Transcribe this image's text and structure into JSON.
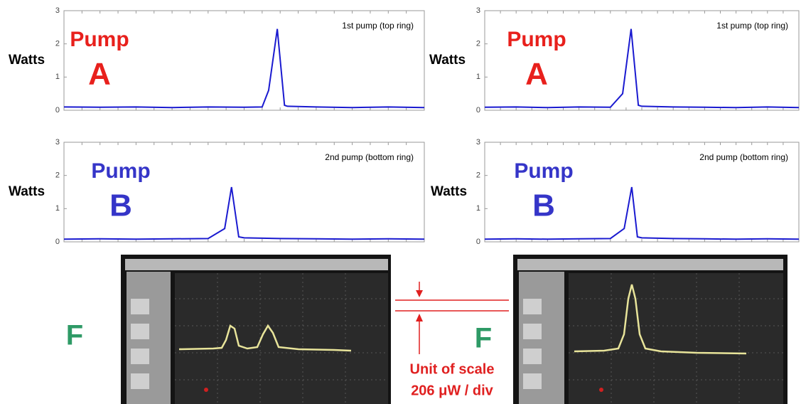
{
  "chart_data": [
    {
      "type": "line",
      "ylabel": "Watts",
      "annotation": "1st pump (top ring)",
      "label_line1": "Pump",
      "label_line2": "A",
      "label_color": "#e8201c",
      "x": [
        0,
        10,
        20,
        30,
        40,
        50,
        55,
        56.8,
        59.2,
        61.2,
        62,
        70,
        80,
        90,
        100
      ],
      "series": [
        {
          "color": "#1a1ad0",
          "values": [
            0.1,
            0.09,
            0.1,
            0.08,
            0.1,
            0.09,
            0.1,
            0.6,
            2.45,
            0.15,
            0.12,
            0.1,
            0.08,
            0.1,
            0.08
          ]
        }
      ],
      "xlim": [
        0,
        100
      ],
      "ylim": [
        0,
        3
      ],
      "yticks": [
        0,
        1,
        2,
        3
      ]
    },
    {
      "type": "line",
      "ylabel": "Watts",
      "annotation": "1st pump (top ring)",
      "label_line1": "Pump",
      "label_line2": "A",
      "label_color": "#e8201c",
      "x": [
        0,
        10,
        20,
        30,
        40,
        43.9,
        46.6,
        48.9,
        50,
        60,
        70,
        80,
        90,
        100
      ],
      "series": [
        {
          "color": "#1a1ad0",
          "values": [
            0.09,
            0.1,
            0.08,
            0.1,
            0.09,
            0.5,
            2.45,
            0.15,
            0.12,
            0.1,
            0.09,
            0.08,
            0.1,
            0.08
          ]
        }
      ],
      "xlim": [
        0,
        100
      ],
      "ylim": [
        0,
        3
      ],
      "yticks": [
        0,
        1,
        2,
        3
      ]
    },
    {
      "type": "line",
      "ylabel": "Watts",
      "annotation": "2nd pump (bottom ring)",
      "label_line1": "Pump",
      "label_line2": "B",
      "label_color": "#3535c8",
      "x": [
        0,
        10,
        20,
        30,
        40,
        44.6,
        46.5,
        48.5,
        50,
        60,
        70,
        80,
        90,
        100
      ],
      "series": [
        {
          "color": "#1a1ad0",
          "values": [
            0.08,
            0.09,
            0.08,
            0.09,
            0.1,
            0.4,
            1.65,
            0.15,
            0.12,
            0.1,
            0.09,
            0.08,
            0.09,
            0.08
          ]
        }
      ],
      "xlim": [
        0,
        100
      ],
      "ylim": [
        0,
        3
      ],
      "yticks": [
        0,
        1,
        2,
        3
      ]
    },
    {
      "type": "line",
      "ylabel": "Watts",
      "annotation": "2nd pump (bottom ring)",
      "label_line1": "Pump",
      "label_line2": "B",
      "label_color": "#3535c8",
      "x": [
        0,
        10,
        20,
        30,
        40,
        44.4,
        46.8,
        48.6,
        50,
        60,
        70,
        80,
        90,
        100
      ],
      "series": [
        {
          "color": "#1a1ad0",
          "values": [
            0.08,
            0.09,
            0.08,
            0.09,
            0.1,
            0.4,
            1.65,
            0.15,
            0.12,
            0.1,
            0.09,
            0.08,
            0.09,
            0.08
          ]
        }
      ],
      "xlim": [
        0,
        100
      ],
      "ylim": [
        0,
        3
      ],
      "yticks": [
        0,
        1,
        2,
        3
      ]
    }
  ],
  "photo_labels": [
    "F",
    "F"
  ],
  "scale_note": [
    "Unit of scale",
    "206 μW / div"
  ]
}
